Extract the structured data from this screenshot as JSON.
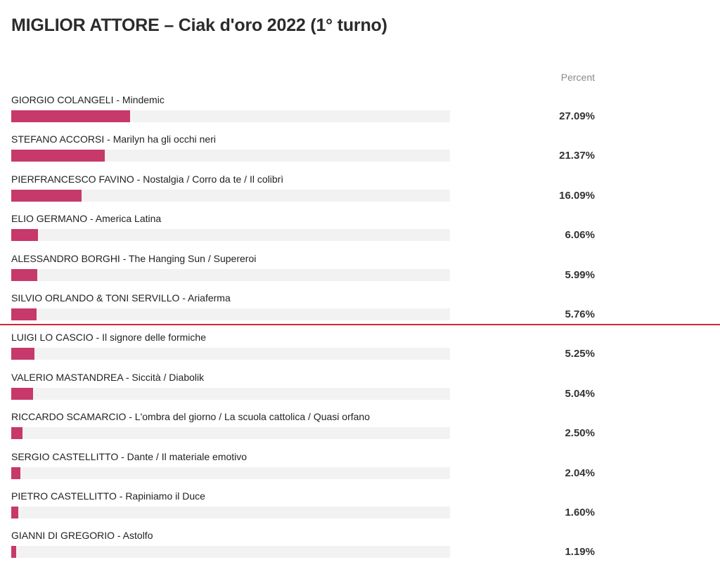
{
  "title": "MIGLIOR ATTORE – Ciak d'oro 2022 (1° turno)",
  "column_header": "Percent",
  "colors": {
    "bar": "#c7386b",
    "track": "#f2f2f2",
    "cutoff_line": "#d0263a"
  },
  "chart_data": {
    "type": "bar",
    "orientation": "horizontal",
    "title": "MIGLIOR ATTORE – Ciak d'oro 2022 (1° turno)",
    "value_column_label": "Percent",
    "xlim": [
      0,
      100
    ],
    "grid": false,
    "legend": "none",
    "cutoff_after_index": 5,
    "categories": [
      "GIORGIO COLANGELI - Mindemic",
      "STEFANO ACCORSI - Marilyn ha gli occhi neri",
      "PIERFRANCESCO FAVINO - Nostalgia / Corro da te / Il colibrì",
      "ELIO GERMANO - America Latina",
      "ALESSANDRO BORGHI - The Hanging Sun / Supereroi",
      "SILVIO ORLANDO & TONI SERVILLO - Ariaferma",
      "LUIGI LO CASCIO - Il signore delle formiche",
      "VALERIO MASTANDREA - Siccità / Diabolik",
      "RICCARDO SCAMARCIO - L'ombra del giorno / La scuola cattolica / Quasi orfano",
      "SERGIO CASTELLITTO - Dante / Il materiale emotivo",
      "PIETRO CASTELLITTO - Rapiniamo il Duce",
      "GIANNI DI GREGORIO - Astolfo"
    ],
    "values": [
      27.09,
      21.37,
      16.09,
      6.06,
      5.99,
      5.76,
      5.25,
      5.04,
      2.5,
      2.04,
      1.6,
      1.19
    ],
    "value_labels": [
      "27.09%",
      "21.37%",
      "16.09%",
      "6.06%",
      "5.99%",
      "5.76%",
      "5.25%",
      "5.04%",
      "2.50%",
      "2.04%",
      "1.60%",
      "1.19%"
    ]
  }
}
